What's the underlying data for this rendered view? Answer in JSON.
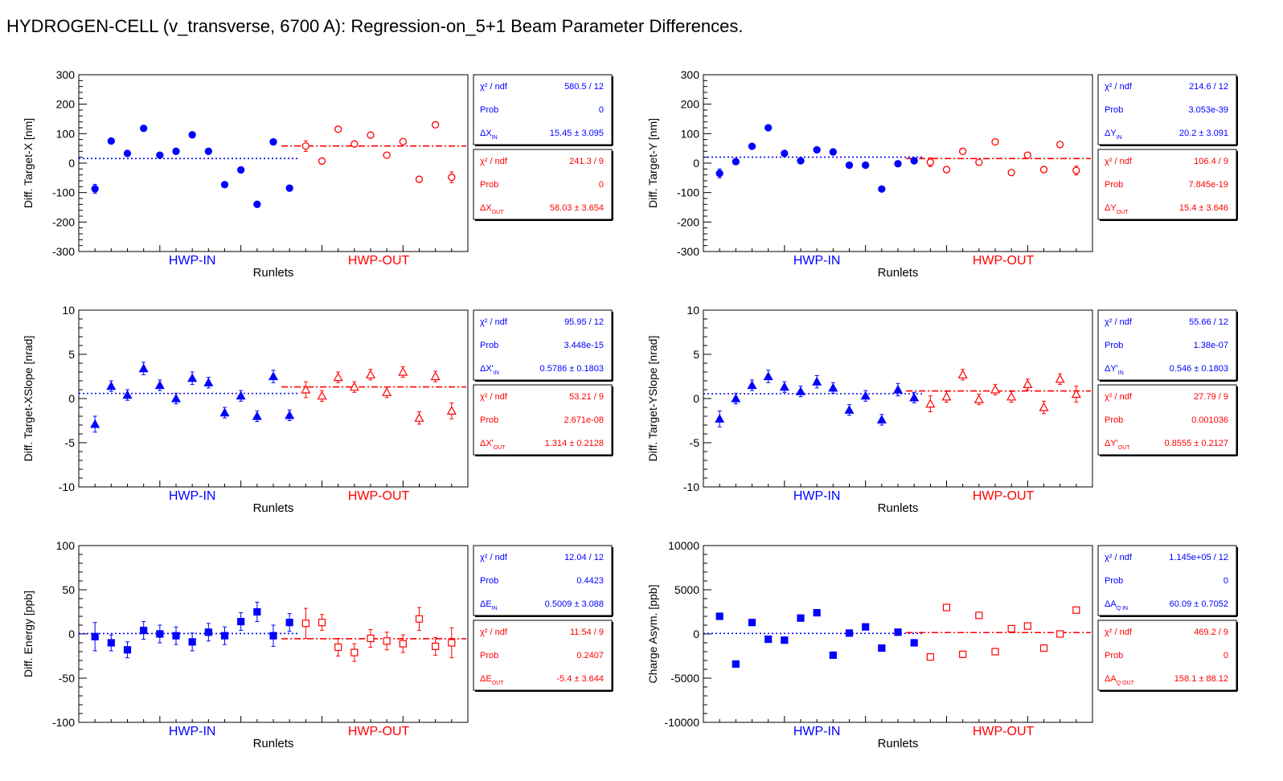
{
  "page_title": "HYDROGEN-CELL (v_transverse, 6700 A): Regression-on_5+1 Beam Parameter Differences.",
  "colors": {
    "in": "#0000ff",
    "out": "#ff0000",
    "axis": "#000000"
  },
  "chart_data": [
    {
      "type": "scatter",
      "ylabel": "Diff. Target-X [nm]",
      "xlabel": "Runlets",
      "ylim": [
        -300,
        300
      ],
      "yticks": [
        -300,
        -200,
        -100,
        0,
        100,
        200,
        300
      ],
      "group_labels": [
        "HWP-IN",
        "HWP-OUT"
      ],
      "marker": "circle",
      "series": [
        {
          "name": "HWP-IN",
          "x": [
            1,
            2,
            3,
            4,
            5,
            6,
            7,
            8,
            9,
            10,
            11,
            12,
            13
          ],
          "y": [
            -87,
            75,
            33,
            118,
            27,
            40,
            96,
            40,
            -73,
            -23,
            -140,
            72,
            -85
          ],
          "err": [
            15,
            8,
            8,
            8,
            8,
            8,
            8,
            8,
            8,
            8,
            8,
            10,
            8
          ],
          "fit": 15.45
        },
        {
          "name": "HWP-OUT",
          "x": [
            14,
            15,
            16,
            17,
            18,
            19,
            20,
            21,
            22,
            23
          ],
          "y": [
            58,
            7,
            115,
            65,
            95,
            27,
            73,
            -55,
            130,
            -48
          ],
          "err": [
            18,
            6,
            6,
            6,
            6,
            6,
            6,
            10,
            6,
            18
          ],
          "fit": 58.03
        }
      ],
      "stats_in": {
        "chi2_label": "χ² / ndf",
        "chi2": "580.5 / 12",
        "prob_label": "Prob",
        "prob": "0",
        "param_label": "ΔX_IN",
        "param": "15.45 ± 3.095"
      },
      "stats_out": {
        "chi2_label": "χ² / ndf",
        "chi2": "241.3 / 9",
        "prob_label": "Prob",
        "prob": "0",
        "param_label": "ΔX_OUT",
        "param": "58.03 ± 3.654"
      }
    },
    {
      "type": "scatter",
      "ylabel": "Diff. Target-Y [nm]",
      "xlabel": "Runlets",
      "ylim": [
        -300,
        300
      ],
      "yticks": [
        -300,
        -200,
        -100,
        0,
        100,
        200,
        300
      ],
      "group_labels": [
        "HWP-IN",
        "HWP-OUT"
      ],
      "marker": "circle",
      "series": [
        {
          "name": "HWP-IN",
          "x": [
            1,
            2,
            3,
            4,
            5,
            6,
            7,
            8,
            9,
            10,
            11,
            12,
            13
          ],
          "y": [
            -35,
            5,
            57,
            120,
            33,
            8,
            45,
            38,
            -7,
            -7,
            -88,
            -2,
            8
          ],
          "err": [
            15,
            8,
            8,
            8,
            8,
            8,
            8,
            8,
            8,
            8,
            8,
            10,
            8
          ],
          "fit": 20.2
        },
        {
          "name": "HWP-OUT",
          "x": [
            14,
            15,
            16,
            17,
            18,
            19,
            20,
            21,
            22,
            23
          ],
          "y": [
            3,
            -22,
            40,
            3,
            72,
            -32,
            27,
            -22,
            63,
            -25
          ],
          "err": [
            15,
            6,
            6,
            6,
            6,
            6,
            6,
            10,
            6,
            15
          ],
          "fit": 15.4
        }
      ],
      "stats_in": {
        "chi2_label": "χ² / ndf",
        "chi2": "214.6 / 12",
        "prob_label": "Prob",
        "prob": "3.053e-39",
        "param_label": "ΔY_IN",
        "param": "20.2 ± 3.091"
      },
      "stats_out": {
        "chi2_label": "χ² / ndf",
        "chi2": "106.4 / 9",
        "prob_label": "Prob",
        "prob": "7.845e-19",
        "param_label": "ΔY_OUT",
        "param": "15.4 ± 3.646"
      }
    },
    {
      "type": "scatter",
      "ylabel": "Diff. Target-XSlope [nrad]",
      "xlabel": "Runlets",
      "ylim": [
        -10,
        10
      ],
      "yticks": [
        -10,
        -5,
        0,
        5,
        10
      ],
      "group_labels": [
        "HWP-IN",
        "HWP-OUT"
      ],
      "marker": "triangle",
      "series": [
        {
          "name": "HWP-IN",
          "x": [
            1,
            2,
            3,
            4,
            5,
            6,
            7,
            8,
            9,
            10,
            11,
            12,
            13
          ],
          "y": [
            -2.9,
            1.4,
            0.4,
            3.4,
            1.5,
            0,
            2.3,
            1.8,
            -1.6,
            0.3,
            -2,
            2.5,
            -1.9
          ],
          "err": [
            0.9,
            0.6,
            0.6,
            0.7,
            0.6,
            0.6,
            0.7,
            0.6,
            0.6,
            0.6,
            0.6,
            0.7,
            0.6
          ],
          "fit": 0.5786
        },
        {
          "name": "HWP-OUT",
          "x": [
            14,
            15,
            16,
            17,
            18,
            19,
            20,
            21,
            22,
            23
          ],
          "y": [
            1,
            0.3,
            2.4,
            1.3,
            2.7,
            0.7,
            3,
            -2.2,
            2.5,
            -1.4
          ],
          "err": [
            0.9,
            0.6,
            0.6,
            0.6,
            0.6,
            0.6,
            0.6,
            0.7,
            0.6,
            0.9
          ],
          "fit": 1.314
        }
      ],
      "stats_in": {
        "chi2_label": "χ² / ndf",
        "chi2": "95.95 / 12",
        "prob_label": "Prob",
        "prob": "3.448e-15",
        "param_label": "ΔX'_IN",
        "param": "0.5786 ± 0.1803"
      },
      "stats_out": {
        "chi2_label": "χ² / ndf",
        "chi2": "53.21 / 9",
        "prob_label": "Prob",
        "prob": "2.671e-08",
        "param_label": "ΔX'_OUT",
        "param": "1.314 ± 0.2128"
      }
    },
    {
      "type": "scatter",
      "ylabel": "Diff. Target-YSlope [nrad]",
      "xlabel": "Runlets",
      "ylim": [
        -10,
        10
      ],
      "yticks": [
        -10,
        -5,
        0,
        5,
        10
      ],
      "group_labels": [
        "HWP-IN",
        "HWP-OUT"
      ],
      "marker": "triangle",
      "series": [
        {
          "name": "HWP-IN",
          "x": [
            1,
            2,
            3,
            4,
            5,
            6,
            7,
            8,
            9,
            10,
            11,
            12,
            13
          ],
          "y": [
            -2.3,
            0,
            1.5,
            2.5,
            1.3,
            0.8,
            1.9,
            1.2,
            -1.3,
            0.3,
            -2.4,
            1,
            0.1
          ],
          "err": [
            0.9,
            0.6,
            0.6,
            0.7,
            0.6,
            0.6,
            0.7,
            0.6,
            0.6,
            0.6,
            0.6,
            0.7,
            0.6
          ],
          "fit": 0.546
        },
        {
          "name": "HWP-OUT",
          "x": [
            14,
            15,
            16,
            17,
            18,
            19,
            20,
            21,
            22,
            23
          ],
          "y": [
            -0.6,
            0.2,
            2.7,
            -0.1,
            1,
            0.2,
            1.6,
            -1,
            2.2,
            0.5
          ],
          "err": [
            0.9,
            0.6,
            0.6,
            0.6,
            0.6,
            0.6,
            0.6,
            0.7,
            0.6,
            0.9
          ],
          "fit": 0.8555
        }
      ],
      "stats_in": {
        "chi2_label": "χ² / ndf",
        "chi2": "55.66 / 12",
        "prob_label": "Prob",
        "prob": "1.38e-07",
        "param_label": "ΔY'_IN",
        "param": "0.546 ± 0.1803"
      },
      "stats_out": {
        "chi2_label": "χ² / ndf",
        "chi2": "27.79 / 9",
        "prob_label": "Prob",
        "prob": "0.001036",
        "param_label": "ΔY'_OUT",
        "param": "0.8555 ± 0.2127"
      }
    },
    {
      "type": "scatter",
      "ylabel": "Diff. Energy [ppb]",
      "xlabel": "Runlets",
      "ylim": [
        -100,
        100
      ],
      "yticks": [
        -100,
        -50,
        0,
        50,
        100
      ],
      "group_labels": [
        "HWP-IN",
        "HWP-OUT"
      ],
      "marker": "square",
      "series": [
        {
          "name": "HWP-IN",
          "x": [
            1,
            2,
            3,
            4,
            5,
            6,
            7,
            8,
            9,
            10,
            11,
            12,
            13
          ],
          "y": [
            -3,
            -10,
            -18,
            4,
            0,
            -2,
            -9,
            2,
            -2,
            14,
            25,
            -2,
            13
          ],
          "err": [
            16,
            9,
            9,
            10,
            10,
            10,
            10,
            10,
            10,
            10,
            11,
            12,
            10
          ],
          "fit": 0.5009
        },
        {
          "name": "HWP-OUT",
          "x": [
            14,
            15,
            16,
            17,
            18,
            19,
            20,
            21,
            22,
            23
          ],
          "y": [
            12,
            13,
            -15,
            -21,
            -5,
            -8,
            -11,
            17,
            -14,
            -10
          ],
          "err": [
            17,
            9,
            10,
            10,
            10,
            10,
            10,
            13,
            10,
            17
          ],
          "fit": -5.4
        }
      ],
      "stats_in": {
        "chi2_label": "χ² / ndf",
        "chi2": "12.04 / 12",
        "prob_label": "Prob",
        "prob": "0.4423",
        "param_label": "ΔE_IN",
        "param": "0.5009 ± 3.088"
      },
      "stats_out": {
        "chi2_label": "χ² / ndf",
        "chi2": "11.54 / 9",
        "prob_label": "Prob",
        "prob": "0.2407",
        "param_label": "ΔE_OUT",
        "param": "-5.4 ± 3.644"
      }
    },
    {
      "type": "scatter",
      "ylabel": "Charge Asym. [ppb]",
      "xlabel": "Runlets",
      "ylim": [
        -10000,
        10000
      ],
      "yticks": [
        -10000,
        -5000,
        0,
        5000,
        10000
      ],
      "group_labels": [
        "HWP-IN",
        "HWP-OUT"
      ],
      "marker": "square",
      "series": [
        {
          "name": "HWP-IN",
          "x": [
            1,
            2,
            3,
            4,
            5,
            6,
            7,
            8,
            9,
            10,
            11,
            12,
            13
          ],
          "y": [
            2000,
            -3400,
            1300,
            -600,
            -700,
            1800,
            2400,
            -2400,
            100,
            800,
            -1600,
            200,
            -1000
          ],
          "err": [
            0,
            0,
            0,
            0,
            0,
            0,
            0,
            0,
            0,
            0,
            0,
            0,
            0
          ],
          "fit": 60.09
        },
        {
          "name": "HWP-OUT",
          "x": [
            14,
            15,
            16,
            17,
            18,
            19,
            20,
            21,
            22,
            23
          ],
          "y": [
            -2600,
            3000,
            -2300,
            2100,
            -2000,
            600,
            900,
            -1600,
            0,
            2700
          ],
          "err": [
            0,
            0,
            0,
            0,
            0,
            0,
            0,
            0,
            0,
            0
          ],
          "fit": 158.1
        }
      ],
      "stats_in": {
        "chi2_label": "χ² / ndf",
        "chi2": "1.145e+05 / 12",
        "prob_label": "Prob",
        "prob": "0",
        "param_label": "ΔA_Q IN",
        "param": "60.09 ± 0.7052"
      },
      "stats_out": {
        "chi2_label": "χ² / ndf",
        "chi2": "469.2 / 9",
        "prob_label": "Prob",
        "prob": "0",
        "param_label": "ΔA_Q OUT",
        "param": "158.1 ± 88.12"
      }
    }
  ]
}
